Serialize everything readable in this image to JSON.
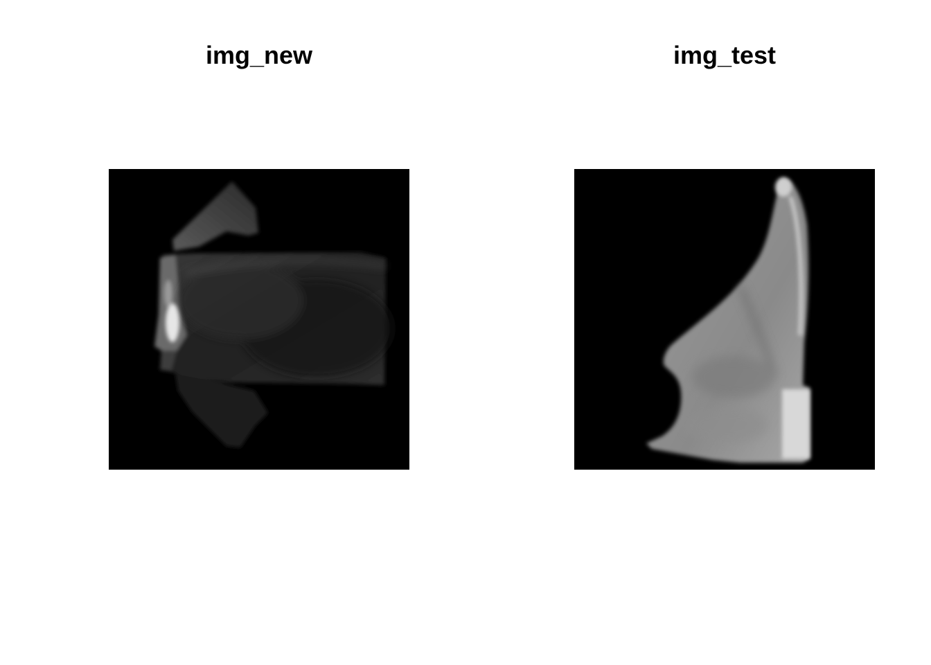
{
  "panels": [
    {
      "title": "img_new"
    },
    {
      "title": "img_test"
    }
  ],
  "colors": {
    "background": "#ffffff",
    "image_background": "#000000",
    "title": "#000000"
  }
}
